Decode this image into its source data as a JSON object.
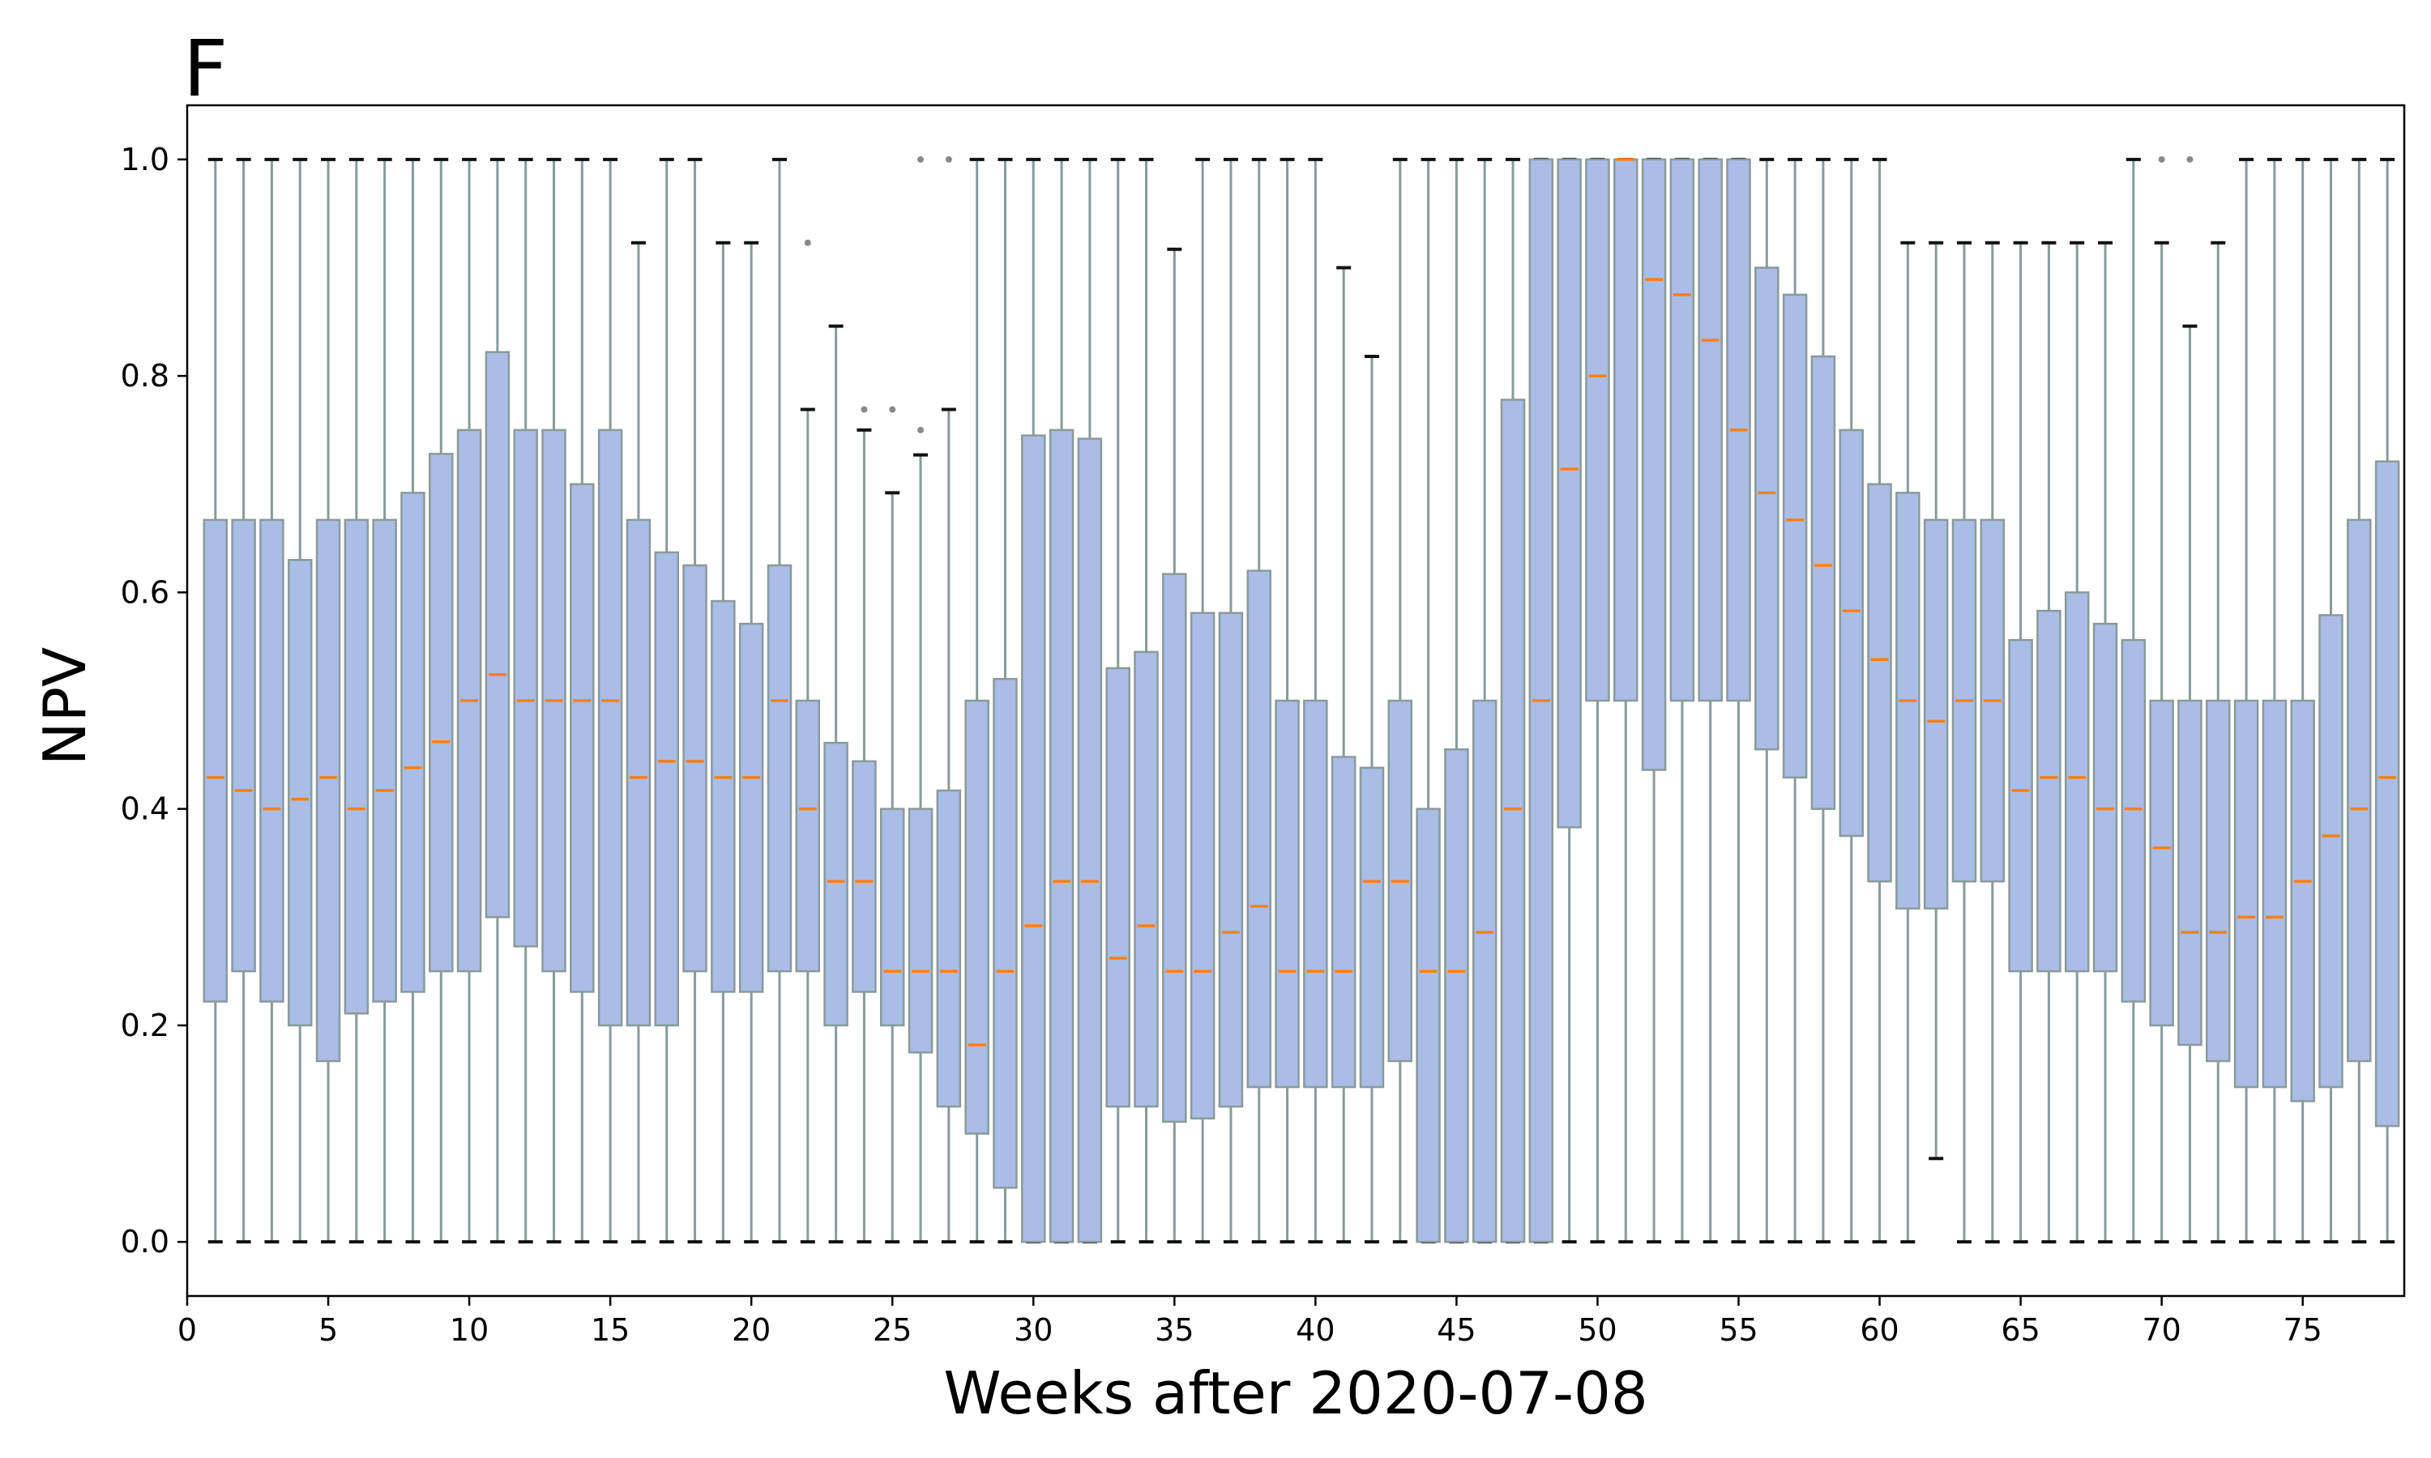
{
  "chart_data": {
    "type": "box",
    "panel_label": "F",
    "xlabel": "Weeks after 2020-07-08",
    "ylabel": "NPV",
    "xlim": [
      0,
      78.6
    ],
    "ylim": [
      -0.05,
      1.05
    ],
    "xticks": [
      0,
      5,
      10,
      15,
      20,
      25,
      30,
      35,
      40,
      45,
      50,
      55,
      60,
      65,
      70,
      75
    ],
    "yticks": [
      0.0,
      0.2,
      0.4,
      0.6,
      0.8,
      1.0
    ],
    "ytick_labels": [
      "0.0",
      "0.2",
      "0.4",
      "0.6",
      "0.8",
      "1.0"
    ],
    "colors": {
      "box_fill": "#aabde6",
      "box_edge": "#8a9a9a",
      "whisker": "#8a9a9a",
      "cap": "#111111",
      "median": "#ff7f0e",
      "outlier": "#8a8a8a"
    },
    "boxes": [
      {
        "week": 1,
        "q1": 0.222,
        "median": 0.429,
        "q3": 0.667,
        "whislo": 0.0,
        "whishi": 1.0,
        "fliers": []
      },
      {
        "week": 2,
        "q1": 0.25,
        "median": 0.417,
        "q3": 0.667,
        "whislo": 0.0,
        "whishi": 1.0,
        "fliers": []
      },
      {
        "week": 3,
        "q1": 0.222,
        "median": 0.4,
        "q3": 0.667,
        "whislo": 0.0,
        "whishi": 1.0,
        "fliers": []
      },
      {
        "week": 4,
        "q1": 0.2,
        "median": 0.409,
        "q3": 0.63,
        "whislo": 0.0,
        "whishi": 1.0,
        "fliers": []
      },
      {
        "week": 5,
        "q1": 0.167,
        "median": 0.429,
        "q3": 0.667,
        "whislo": 0.0,
        "whishi": 1.0,
        "fliers": []
      },
      {
        "week": 6,
        "q1": 0.211,
        "median": 0.4,
        "q3": 0.667,
        "whislo": 0.0,
        "whishi": 1.0,
        "fliers": []
      },
      {
        "week": 7,
        "q1": 0.222,
        "median": 0.417,
        "q3": 0.667,
        "whislo": 0.0,
        "whishi": 1.0,
        "fliers": []
      },
      {
        "week": 8,
        "q1": 0.231,
        "median": 0.438,
        "q3": 0.692,
        "whislo": 0.0,
        "whishi": 1.0,
        "fliers": []
      },
      {
        "week": 9,
        "q1": 0.25,
        "median": 0.462,
        "q3": 0.728,
        "whislo": 0.0,
        "whishi": 1.0,
        "fliers": []
      },
      {
        "week": 10,
        "q1": 0.25,
        "median": 0.5,
        "q3": 0.75,
        "whislo": 0.0,
        "whishi": 1.0,
        "fliers": []
      },
      {
        "week": 11,
        "q1": 0.3,
        "median": 0.524,
        "q3": 0.822,
        "whislo": 0.0,
        "whishi": 1.0,
        "fliers": []
      },
      {
        "week": 12,
        "q1": 0.273,
        "median": 0.5,
        "q3": 0.75,
        "whislo": 0.0,
        "whishi": 1.0,
        "fliers": []
      },
      {
        "week": 13,
        "q1": 0.25,
        "median": 0.5,
        "q3": 0.75,
        "whislo": 0.0,
        "whishi": 1.0,
        "fliers": []
      },
      {
        "week": 14,
        "q1": 0.231,
        "median": 0.5,
        "q3": 0.7,
        "whislo": 0.0,
        "whishi": 1.0,
        "fliers": []
      },
      {
        "week": 15,
        "q1": 0.2,
        "median": 0.5,
        "q3": 0.75,
        "whislo": 0.0,
        "whishi": 1.0,
        "fliers": []
      },
      {
        "week": 16,
        "q1": 0.2,
        "median": 0.429,
        "q3": 0.667,
        "whislo": 0.0,
        "whishi": 0.923,
        "fliers": []
      },
      {
        "week": 17,
        "q1": 0.2,
        "median": 0.444,
        "q3": 0.637,
        "whislo": 0.0,
        "whishi": 1.0,
        "fliers": []
      },
      {
        "week": 18,
        "q1": 0.25,
        "median": 0.444,
        "q3": 0.625,
        "whislo": 0.0,
        "whishi": 1.0,
        "fliers": []
      },
      {
        "week": 19,
        "q1": 0.231,
        "median": 0.429,
        "q3": 0.592,
        "whislo": 0.0,
        "whishi": 0.923,
        "fliers": []
      },
      {
        "week": 20,
        "q1": 0.231,
        "median": 0.429,
        "q3": 0.571,
        "whislo": 0.0,
        "whishi": 0.923,
        "fliers": []
      },
      {
        "week": 21,
        "q1": 0.25,
        "median": 0.5,
        "q3": 0.625,
        "whislo": 0.0,
        "whishi": 1.0,
        "fliers": []
      },
      {
        "week": 22,
        "q1": 0.25,
        "median": 0.4,
        "q3": 0.5,
        "whislo": 0.0,
        "whishi": 0.769,
        "fliers": [
          0.923
        ]
      },
      {
        "week": 23,
        "q1": 0.2,
        "median": 0.333,
        "q3": 0.461,
        "whislo": 0.0,
        "whishi": 0.846,
        "fliers": []
      },
      {
        "week": 24,
        "q1": 0.231,
        "median": 0.333,
        "q3": 0.444,
        "whislo": 0.0,
        "whishi": 0.75,
        "fliers": [
          0.769
        ]
      },
      {
        "week": 25,
        "q1": 0.2,
        "median": 0.25,
        "q3": 0.4,
        "whislo": 0.0,
        "whishi": 0.692,
        "fliers": [
          0.769
        ]
      },
      {
        "week": 26,
        "q1": 0.175,
        "median": 0.25,
        "q3": 0.4,
        "whislo": 0.0,
        "whishi": 0.727,
        "fliers": [
          0.75,
          1.0
        ]
      },
      {
        "week": 27,
        "q1": 0.125,
        "median": 0.25,
        "q3": 0.417,
        "whislo": 0.0,
        "whishi": 0.769,
        "fliers": [
          1.0
        ]
      },
      {
        "week": 28,
        "q1": 0.1,
        "median": 0.182,
        "q3": 0.5,
        "whislo": 0.0,
        "whishi": 1.0,
        "fliers": []
      },
      {
        "week": 29,
        "q1": 0.05,
        "median": 0.25,
        "q3": 0.52,
        "whislo": 0.0,
        "whishi": 1.0,
        "fliers": []
      },
      {
        "week": 30,
        "q1": 0.0,
        "median": 0.292,
        "q3": 0.745,
        "whislo": 0.0,
        "whishi": 1.0,
        "fliers": []
      },
      {
        "week": 31,
        "q1": 0.0,
        "median": 0.333,
        "q3": 0.75,
        "whislo": 0.0,
        "whishi": 1.0,
        "fliers": []
      },
      {
        "week": 32,
        "q1": 0.0,
        "median": 0.333,
        "q3": 0.742,
        "whislo": 0.0,
        "whishi": 1.0,
        "fliers": []
      },
      {
        "week": 33,
        "q1": 0.125,
        "median": 0.262,
        "q3": 0.53,
        "whislo": 0.0,
        "whishi": 1.0,
        "fliers": []
      },
      {
        "week": 34,
        "q1": 0.125,
        "median": 0.292,
        "q3": 0.545,
        "whislo": 0.0,
        "whishi": 1.0,
        "fliers": []
      },
      {
        "week": 35,
        "q1": 0.111,
        "median": 0.25,
        "q3": 0.617,
        "whislo": 0.0,
        "whishi": 0.917,
        "fliers": []
      },
      {
        "week": 36,
        "q1": 0.114,
        "median": 0.25,
        "q3": 0.581,
        "whislo": 0.0,
        "whishi": 1.0,
        "fliers": []
      },
      {
        "week": 37,
        "q1": 0.125,
        "median": 0.286,
        "q3": 0.581,
        "whislo": 0.0,
        "whishi": 1.0,
        "fliers": []
      },
      {
        "week": 38,
        "q1": 0.143,
        "median": 0.31,
        "q3": 0.62,
        "whislo": 0.0,
        "whishi": 1.0,
        "fliers": []
      },
      {
        "week": 39,
        "q1": 0.143,
        "median": 0.25,
        "q3": 0.5,
        "whislo": 0.0,
        "whishi": 1.0,
        "fliers": []
      },
      {
        "week": 40,
        "q1": 0.143,
        "median": 0.25,
        "q3": 0.5,
        "whislo": 0.0,
        "whishi": 1.0,
        "fliers": []
      },
      {
        "week": 41,
        "q1": 0.143,
        "median": 0.25,
        "q3": 0.448,
        "whislo": 0.0,
        "whishi": 0.9,
        "fliers": []
      },
      {
        "week": 42,
        "q1": 0.143,
        "median": 0.333,
        "q3": 0.438,
        "whislo": 0.0,
        "whishi": 0.818,
        "fliers": []
      },
      {
        "week": 43,
        "q1": 0.167,
        "median": 0.333,
        "q3": 0.5,
        "whislo": 0.0,
        "whishi": 1.0,
        "fliers": []
      },
      {
        "week": 44,
        "q1": 0.0,
        "median": 0.25,
        "q3": 0.4,
        "whislo": 0.0,
        "whishi": 1.0,
        "fliers": []
      },
      {
        "week": 45,
        "q1": 0.0,
        "median": 0.25,
        "q3": 0.455,
        "whislo": 0.0,
        "whishi": 1.0,
        "fliers": []
      },
      {
        "week": 46,
        "q1": 0.0,
        "median": 0.286,
        "q3": 0.5,
        "whislo": 0.0,
        "whishi": 1.0,
        "fliers": []
      },
      {
        "week": 47,
        "q1": 0.0,
        "median": 0.4,
        "q3": 0.778,
        "whislo": 0.0,
        "whishi": 1.0,
        "fliers": []
      },
      {
        "week": 48,
        "q1": 0.0,
        "median": 0.5,
        "q3": 1.0,
        "whislo": 0.0,
        "whishi": 1.0,
        "fliers": []
      },
      {
        "week": 49,
        "q1": 0.383,
        "median": 0.714,
        "q3": 1.0,
        "whislo": 0.0,
        "whishi": 1.0,
        "fliers": []
      },
      {
        "week": 50,
        "q1": 0.5,
        "median": 0.8,
        "q3": 1.0,
        "whislo": 0.0,
        "whishi": 1.0,
        "fliers": []
      },
      {
        "week": 51,
        "q1": 0.5,
        "median": 1.0,
        "q3": 1.0,
        "whislo": 0.0,
        "whishi": 1.0,
        "fliers": []
      },
      {
        "week": 52,
        "q1": 0.436,
        "median": 0.889,
        "q3": 1.0,
        "whislo": 0.0,
        "whishi": 1.0,
        "fliers": []
      },
      {
        "week": 53,
        "q1": 0.5,
        "median": 0.875,
        "q3": 1.0,
        "whislo": 0.0,
        "whishi": 1.0,
        "fliers": []
      },
      {
        "week": 54,
        "q1": 0.5,
        "median": 0.833,
        "q3": 1.0,
        "whislo": 0.0,
        "whishi": 1.0,
        "fliers": []
      },
      {
        "week": 55,
        "q1": 0.5,
        "median": 0.75,
        "q3": 1.0,
        "whislo": 0.0,
        "whishi": 1.0,
        "fliers": []
      },
      {
        "week": 56,
        "q1": 0.455,
        "median": 0.692,
        "q3": 0.9,
        "whislo": 0.0,
        "whishi": 1.0,
        "fliers": []
      },
      {
        "week": 57,
        "q1": 0.429,
        "median": 0.667,
        "q3": 0.875,
        "whislo": 0.0,
        "whishi": 1.0,
        "fliers": []
      },
      {
        "week": 58,
        "q1": 0.4,
        "median": 0.625,
        "q3": 0.818,
        "whislo": 0.0,
        "whishi": 1.0,
        "fliers": []
      },
      {
        "week": 59,
        "q1": 0.375,
        "median": 0.583,
        "q3": 0.75,
        "whislo": 0.0,
        "whishi": 1.0,
        "fliers": []
      },
      {
        "week": 60,
        "q1": 0.333,
        "median": 0.538,
        "q3": 0.7,
        "whislo": 0.0,
        "whishi": 1.0,
        "fliers": []
      },
      {
        "week": 61,
        "q1": 0.308,
        "median": 0.5,
        "q3": 0.692,
        "whislo": 0.0,
        "whishi": 0.923,
        "fliers": []
      },
      {
        "week": 62,
        "q1": 0.308,
        "median": 0.481,
        "q3": 0.667,
        "whislo": 0.077,
        "whishi": 0.923,
        "fliers": []
      },
      {
        "week": 63,
        "q1": 0.333,
        "median": 0.5,
        "q3": 0.667,
        "whislo": 0.0,
        "whishi": 0.923,
        "fliers": []
      },
      {
        "week": 64,
        "q1": 0.333,
        "median": 0.5,
        "q3": 0.667,
        "whislo": 0.0,
        "whishi": 0.923,
        "fliers": []
      },
      {
        "week": 65,
        "q1": 0.25,
        "median": 0.417,
        "q3": 0.556,
        "whislo": 0.0,
        "whishi": 0.923,
        "fliers": []
      },
      {
        "week": 66,
        "q1": 0.25,
        "median": 0.429,
        "q3": 0.583,
        "whislo": 0.0,
        "whishi": 0.923,
        "fliers": []
      },
      {
        "week": 67,
        "q1": 0.25,
        "median": 0.429,
        "q3": 0.6,
        "whislo": 0.0,
        "whishi": 0.923,
        "fliers": []
      },
      {
        "week": 68,
        "q1": 0.25,
        "median": 0.4,
        "q3": 0.571,
        "whislo": 0.0,
        "whishi": 0.923,
        "fliers": []
      },
      {
        "week": 69,
        "q1": 0.222,
        "median": 0.4,
        "q3": 0.556,
        "whislo": 0.0,
        "whishi": 1.0,
        "fliers": []
      },
      {
        "week": 70,
        "q1": 0.2,
        "median": 0.364,
        "q3": 0.5,
        "whislo": 0.0,
        "whishi": 0.923,
        "fliers": [
          1.0
        ]
      },
      {
        "week": 71,
        "q1": 0.182,
        "median": 0.286,
        "q3": 0.5,
        "whislo": 0.0,
        "whishi": 0.846,
        "fliers": [
          1.0
        ]
      },
      {
        "week": 72,
        "q1": 0.167,
        "median": 0.286,
        "q3": 0.5,
        "whislo": 0.0,
        "whishi": 0.923,
        "fliers": []
      },
      {
        "week": 73,
        "q1": 0.143,
        "median": 0.3,
        "q3": 0.5,
        "whislo": 0.0,
        "whishi": 1.0,
        "fliers": []
      },
      {
        "week": 74,
        "q1": 0.143,
        "median": 0.3,
        "q3": 0.5,
        "whislo": 0.0,
        "whishi": 1.0,
        "fliers": []
      },
      {
        "week": 75,
        "q1": 0.13,
        "median": 0.333,
        "q3": 0.5,
        "whislo": 0.0,
        "whishi": 1.0,
        "fliers": []
      },
      {
        "week": 76,
        "q1": 0.143,
        "median": 0.375,
        "q3": 0.579,
        "whislo": 0.0,
        "whishi": 1.0,
        "fliers": []
      },
      {
        "week": 77,
        "q1": 0.167,
        "median": 0.4,
        "q3": 0.667,
        "whislo": 0.0,
        "whishi": 1.0,
        "fliers": []
      },
      {
        "week": 78,
        "q1": 0.107,
        "median": 0.429,
        "q3": 0.721,
        "whislo": 0.0,
        "whishi": 1.0,
        "fliers": []
      }
    ]
  }
}
